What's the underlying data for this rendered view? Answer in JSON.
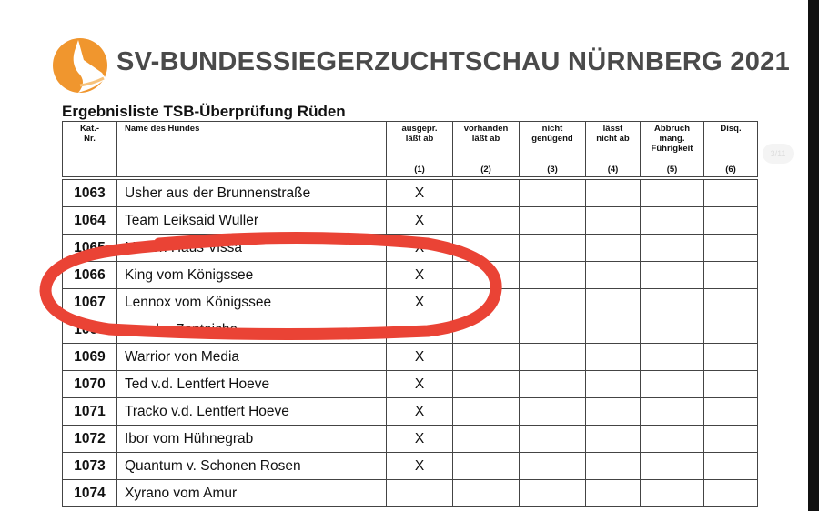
{
  "header": {
    "title": "SV-BUNDESSIEGERZUCHTSCHAU NÜRNBERG 2021",
    "subtitle": "Ergebnisliste TSB-Überprüfung Rüden",
    "logo": "sv-dog-head-logo",
    "logo_color": "#f0962e"
  },
  "page_indicator": "3/11",
  "columns": [
    {
      "label": "Kat.-\nNr.",
      "num": ""
    },
    {
      "label": "Name des Hundes",
      "num": ""
    },
    {
      "label": "ausgepr.\nläßt ab",
      "num": "(1)"
    },
    {
      "label": "vorhanden\nläßt ab",
      "num": "(2)"
    },
    {
      "label": "nicht\ngenügend",
      "num": "(3)"
    },
    {
      "label": "lässt\nnicht ab",
      "num": "(4)"
    },
    {
      "label": "Abbruch\nmang.\nFührigkeit",
      "num": "(5)"
    },
    {
      "label": "Disq.",
      "num": "(6)"
    }
  ],
  "rows": [
    {
      "kat": "1063",
      "name": "Usher aus der Brunnenstraße",
      "c1": "X"
    },
    {
      "kat": "1064",
      "name": "Team Leiksaid Wuller",
      "c1": "X"
    },
    {
      "kat": "1065",
      "name": "Mason Haus Vissa",
      "c1": "X"
    },
    {
      "kat": "1066",
      "name": "King vom Königssee",
      "c1": "X"
    },
    {
      "kat": "1067",
      "name": "Lennox vom Königssee",
      "c1": "X"
    },
    {
      "kat": "1068",
      "name": "von der Zenteiche",
      "c1": ""
    },
    {
      "kat": "1069",
      "name": "Warrior von Media",
      "c1": "X"
    },
    {
      "kat": "1070",
      "name": "Ted v.d. Lentfert Hoeve",
      "c1": "X"
    },
    {
      "kat": "1071",
      "name": "Tracko v.d. Lentfert Hoeve",
      "c1": "X"
    },
    {
      "kat": "1072",
      "name": "Ibor vom Hühnegrab",
      "c1": "X"
    },
    {
      "kat": "1073",
      "name": "Quantum v. Schonen Rosen",
      "c1": "X"
    },
    {
      "kat": "1074",
      "name": "Xyrano vom Amur",
      "c1": ""
    }
  ],
  "annotation_color": "#ea4335"
}
